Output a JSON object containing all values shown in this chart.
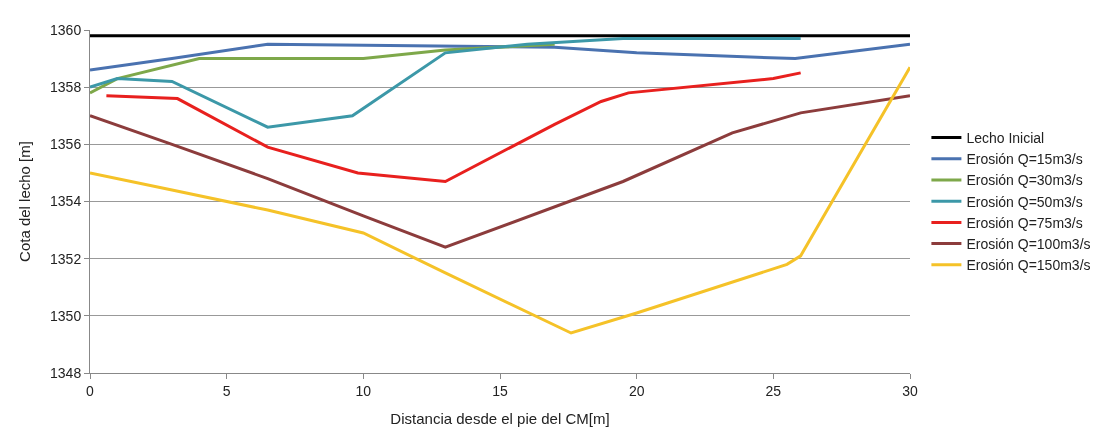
{
  "chart_data": {
    "type": "line",
    "xlabel": "Distancia desde el pie del CM[m]",
    "ylabel": "Cota del lecho [m]",
    "xlim": [
      0,
      30
    ],
    "xticks": [
      0,
      5,
      10,
      15,
      20,
      25,
      30
    ],
    "ylim": [
      1348,
      1360
    ],
    "yticks": [
      1348,
      1350,
      1352,
      1354,
      1356,
      1358,
      1360
    ],
    "grid": "y",
    "legend": "right",
    "marker": "none",
    "line_style": "solid",
    "series": [
      {
        "name": "Lecho Inicial",
        "color": "#000000",
        "x": [
          0,
          30
        ],
        "values": [
          1359.8,
          1359.8
        ]
      },
      {
        "name": "Erosión Q=15m3/s",
        "color": "#4a72b0",
        "x": [
          0,
          3,
          6.5,
          17,
          20,
          25.8,
          30
        ],
        "values": [
          1358.6,
          1359,
          1359.5,
          1359.4,
          1359.2,
          1359,
          1359.5
        ]
      },
      {
        "name": "Erosión Q=30m3/s",
        "color": "#7ea84a",
        "x": [
          0,
          1,
          4,
          6.5,
          10,
          13,
          17
        ],
        "values": [
          1357.8,
          1358.3,
          1359,
          1359,
          1359,
          1359.3,
          1359.5
        ]
      },
      {
        "name": "Erosión Q=50m3/s",
        "color": "#3c98a8",
        "x": [
          0,
          1,
          3,
          6.5,
          9.6,
          13,
          16,
          19.5,
          26
        ],
        "values": [
          1358,
          1358.3,
          1358.2,
          1356.6,
          1357,
          1359.2,
          1359.5,
          1359.7,
          1359.7
        ]
      },
      {
        "name": "Erosión Q=75m3/s",
        "color": "#e8201e",
        "x": [
          0.6,
          3.2,
          6.5,
          9.8,
          13,
          17,
          18.7,
          19.7,
          25,
          26
        ],
        "values": [
          1357.7,
          1357.6,
          1355.9,
          1355,
          1354.7,
          1356.7,
          1357.5,
          1357.8,
          1358.3,
          1358.5
        ]
      },
      {
        "name": "Erosión Q=100m3/s",
        "color": "#8c3c3c",
        "x": [
          0,
          3,
          6.5,
          10,
          13,
          19.5,
          23.5,
          26,
          30
        ],
        "values": [
          1357,
          1356,
          1354.8,
          1353.5,
          1352.4,
          1354.7,
          1356.4,
          1357.1,
          1357.7
        ]
      },
      {
        "name": "Erosión Q=150m3/s",
        "color": "#f5c228",
        "x": [
          0,
          3,
          6.5,
          10,
          13,
          17.6,
          20,
          25.5,
          26,
          30
        ],
        "values": [
          1355,
          1354.4,
          1353.7,
          1352.9,
          1351.5,
          1349.4,
          1350.1,
          1351.8,
          1352.1,
          1358.7
        ]
      }
    ]
  }
}
